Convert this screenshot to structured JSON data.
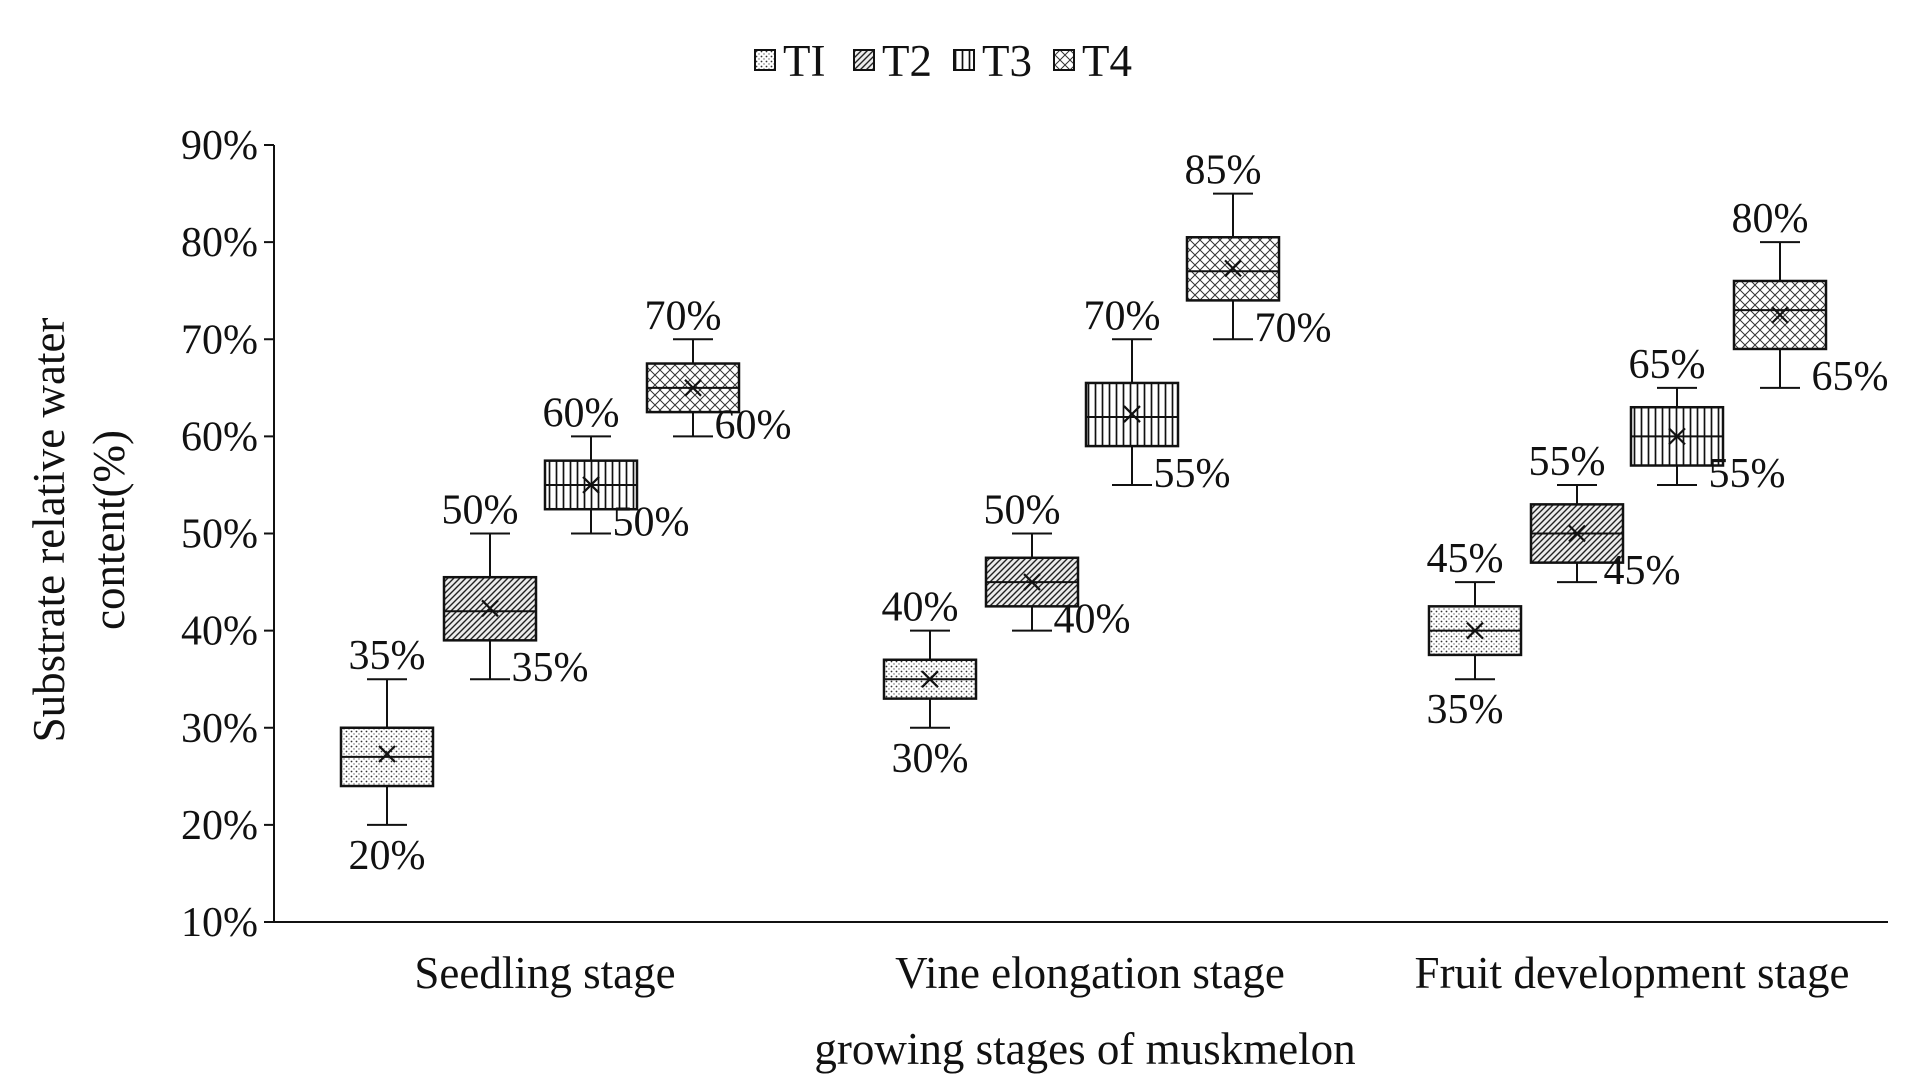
{
  "chart_data": {
    "type": "box",
    "title": "",
    "xlabel": "growing stages of muskmelon",
    "ylabel_lines": [
      "Substrate relative water",
      "content(%)"
    ],
    "ylim": [
      10,
      90
    ],
    "yticks": [
      10,
      20,
      30,
      40,
      50,
      60,
      70,
      80,
      90
    ],
    "ytick_labels": [
      "10%",
      "20%",
      "30%",
      "40%",
      "50%",
      "60%",
      "70%",
      "80%",
      "90%"
    ],
    "categories": [
      "Seedling stage",
      "Vine elongation stage",
      "Fruit development stage"
    ],
    "legend": [
      "TI",
      "T2",
      "T3",
      "T4"
    ],
    "series": [
      {
        "name": "TI",
        "boxes": [
          {
            "min": 20,
            "q1": 24,
            "median": 27,
            "mean": 27.3,
            "q3": 30,
            "max": 35,
            "max_label": "35%",
            "min_label": "20%"
          },
          {
            "min": 30,
            "q1": 33,
            "median": 35,
            "mean": 35,
            "q3": 37,
            "max": 40,
            "max_label": "40%",
            "min_label": "30%"
          },
          {
            "min": 35,
            "q1": 37.5,
            "median": 40,
            "mean": 40,
            "q3": 42.5,
            "max": 45,
            "max_label": "45%",
            "min_label": "35%"
          }
        ]
      },
      {
        "name": "T2",
        "boxes": [
          {
            "min": 35,
            "q1": 39,
            "median": 42,
            "mean": 42.3,
            "q3": 45.5,
            "max": 50,
            "max_label": "50%",
            "min_label": "35%"
          },
          {
            "min": 40,
            "q1": 42.5,
            "median": 45,
            "mean": 45,
            "q3": 47.5,
            "max": 50,
            "max_label": "50%",
            "min_label": "40%"
          },
          {
            "min": 45,
            "q1": 47,
            "median": 50,
            "mean": 50,
            "q3": 53,
            "max": 55,
            "max_label": "55%",
            "min_label": "45%"
          }
        ]
      },
      {
        "name": "T3",
        "boxes": [
          {
            "min": 50,
            "q1": 52.5,
            "median": 55,
            "mean": 55,
            "q3": 57.5,
            "max": 60,
            "max_label": "60%",
            "min_label": "50%"
          },
          {
            "min": 55,
            "q1": 59,
            "median": 62,
            "mean": 62.3,
            "q3": 65.5,
            "max": 70,
            "max_label": "70%",
            "min_label": "55%"
          },
          {
            "min": 55,
            "q1": 57,
            "median": 60,
            "mean": 60,
            "q3": 63,
            "max": 65,
            "max_label": "65%",
            "min_label": "55%"
          }
        ]
      },
      {
        "name": "T4",
        "boxes": [
          {
            "min": 60,
            "q1": 62.5,
            "median": 65,
            "mean": 65,
            "q3": 67.5,
            "max": 70,
            "max_label": "70%",
            "min_label": "60%"
          },
          {
            "min": 70,
            "q1": 74,
            "median": 77,
            "mean": 77.3,
            "q3": 80.5,
            "max": 85,
            "max_label": "85%",
            "min_label": "70%"
          },
          {
            "min": 65,
            "q1": 69,
            "median": 73,
            "mean": 72.5,
            "q3": 76,
            "max": 80,
            "max_label": "80%",
            "min_label": "65%"
          }
        ]
      }
    ]
  }
}
